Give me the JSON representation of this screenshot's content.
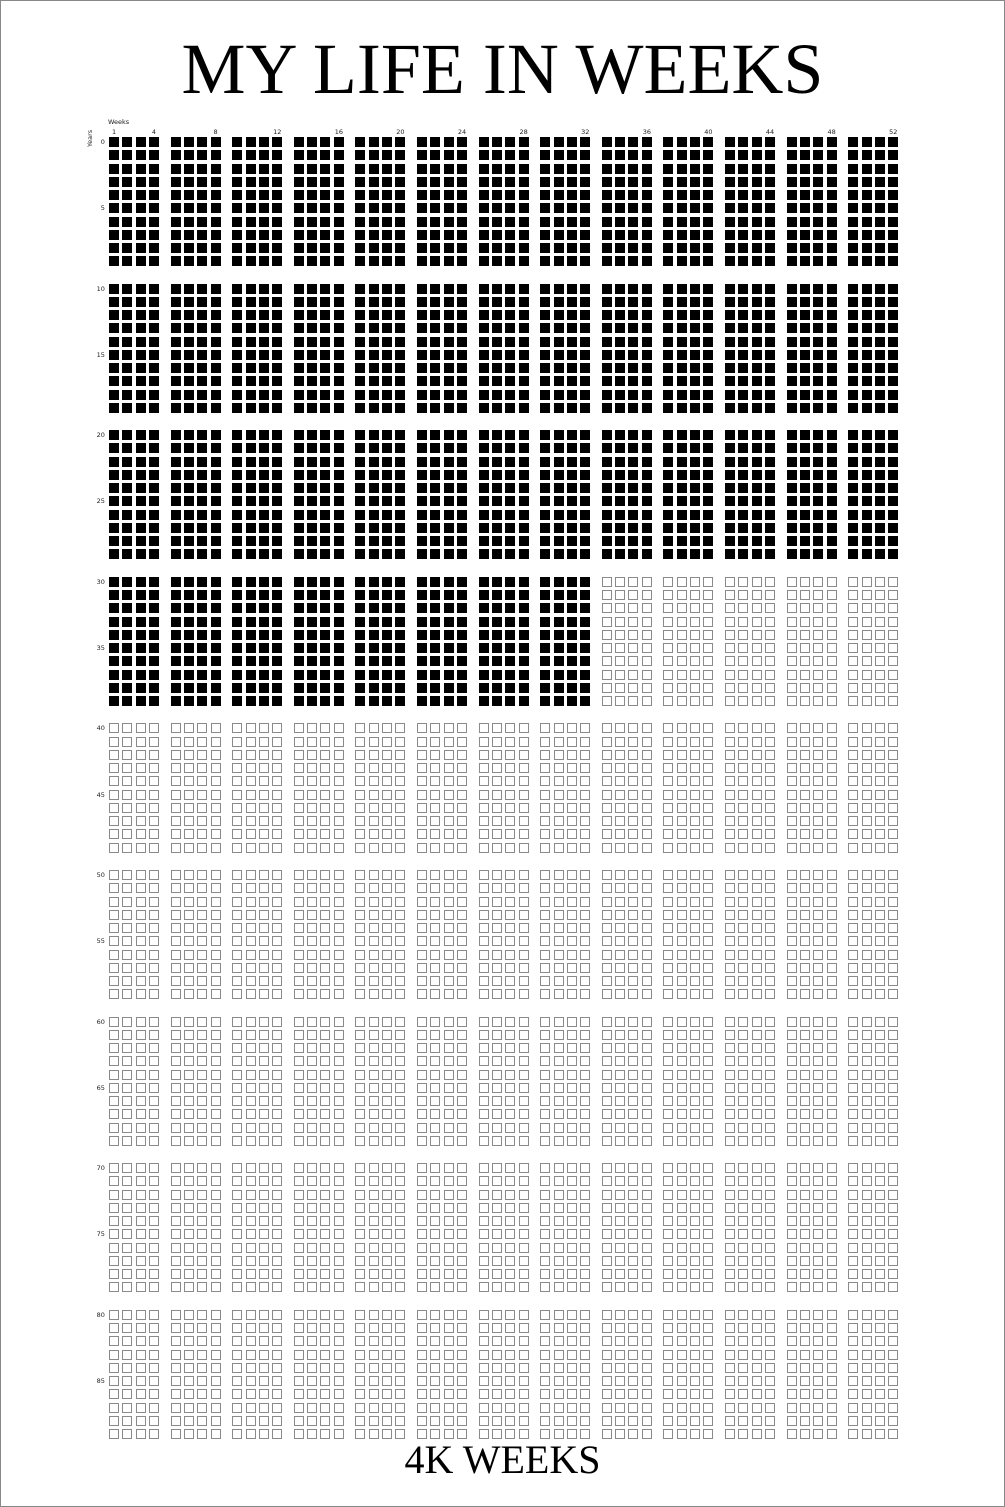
{
  "title": "MY LIFE IN WEEKS",
  "footer": "4K WEEKS",
  "axes": {
    "weeks_label": "Weeks",
    "years_label": "Years",
    "week_ticks": [
      1,
      4,
      8,
      12,
      16,
      20,
      24,
      28,
      32,
      36,
      40,
      44,
      48,
      52
    ],
    "year_ticks": [
      0,
      5,
      10,
      15,
      20,
      25,
      30,
      35,
      40,
      45,
      50,
      55,
      60,
      65,
      70,
      75,
      80,
      85
    ]
  },
  "grid": {
    "weeks_per_year": 52,
    "years": 90,
    "filled_full_years": 30,
    "filled_partial": {
      "years": [
        30,
        39
      ],
      "weeks_through": 32
    },
    "filled_color": "#000000",
    "empty_border_color": "#8a8a8a"
  }
}
